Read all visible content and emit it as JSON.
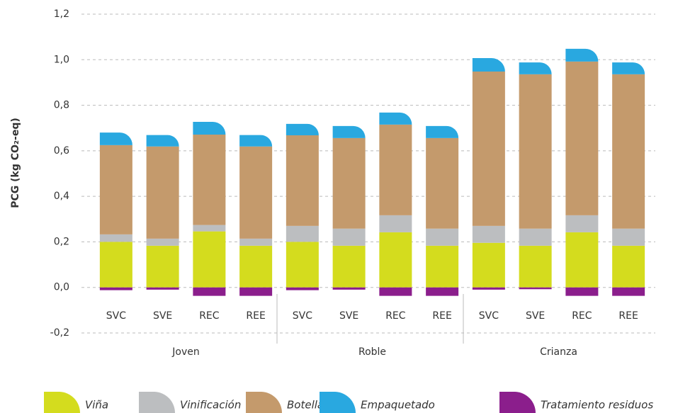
{
  "chart_data": {
    "type": "stacked_bar",
    "y_label": "PCG (kg CO₂-eq)",
    "categories": [
      "SVC",
      "SVE",
      "REC",
      "REE",
      "SVC",
      "SVE",
      "REC",
      "REE",
      "SVC",
      "SVE",
      "REC",
      "REE"
    ],
    "groups": [
      "Joven",
      "Roble",
      "Crianza"
    ],
    "ylim": [
      -0.2,
      1.2
    ],
    "yticks": [
      {
        "value": -0.2,
        "label": "-0,2"
      },
      {
        "value": 0,
        "label": "0,0"
      },
      {
        "value": 0.2,
        "label": "0,2"
      },
      {
        "value": 0.4,
        "label": "0,4"
      },
      {
        "value": 0.6,
        "label": "0,6"
      },
      {
        "value": 0.8,
        "label": "0,8"
      },
      {
        "value": 1.0,
        "label": "1,0"
      },
      {
        "value": 1.2,
        "label": "1,2"
      }
    ],
    "grid": true,
    "legend": "bottom",
    "series": [
      {
        "name": "Viña",
        "color": "#d4dc1e",
        "values": [
          0.2,
          0.183,
          0.246,
          0.183,
          0.2,
          0.183,
          0.242,
          0.183,
          0.196,
          0.183,
          0.242,
          0.183
        ]
      },
      {
        "name": "Vinificación",
        "color": "#bcbec0",
        "values": [
          0.033,
          0.031,
          0.028,
          0.031,
          0.07,
          0.075,
          0.075,
          0.075,
          0.074,
          0.075,
          0.075,
          0.075
        ]
      },
      {
        "name": "Botella",
        "color": "#c49a6c",
        "values": [
          0.392,
          0.405,
          0.397,
          0.405,
          0.398,
          0.398,
          0.398,
          0.398,
          0.678,
          0.678,
          0.675,
          0.678
        ]
      },
      {
        "name": "Empaquetado",
        "color": "#29a8e0",
        "values": [
          0.055,
          0.05,
          0.056,
          0.05,
          0.05,
          0.053,
          0.053,
          0.053,
          0.059,
          0.052,
          0.056,
          0.052
        ]
      },
      {
        "name": "Tratamiento residuos",
        "color": "#8b1e8c",
        "values": [
          -0.012,
          -0.01,
          -0.037,
          -0.037,
          -0.012,
          -0.01,
          -0.037,
          -0.037,
          -0.01,
          -0.008,
          -0.037,
          -0.037
        ]
      }
    ]
  }
}
